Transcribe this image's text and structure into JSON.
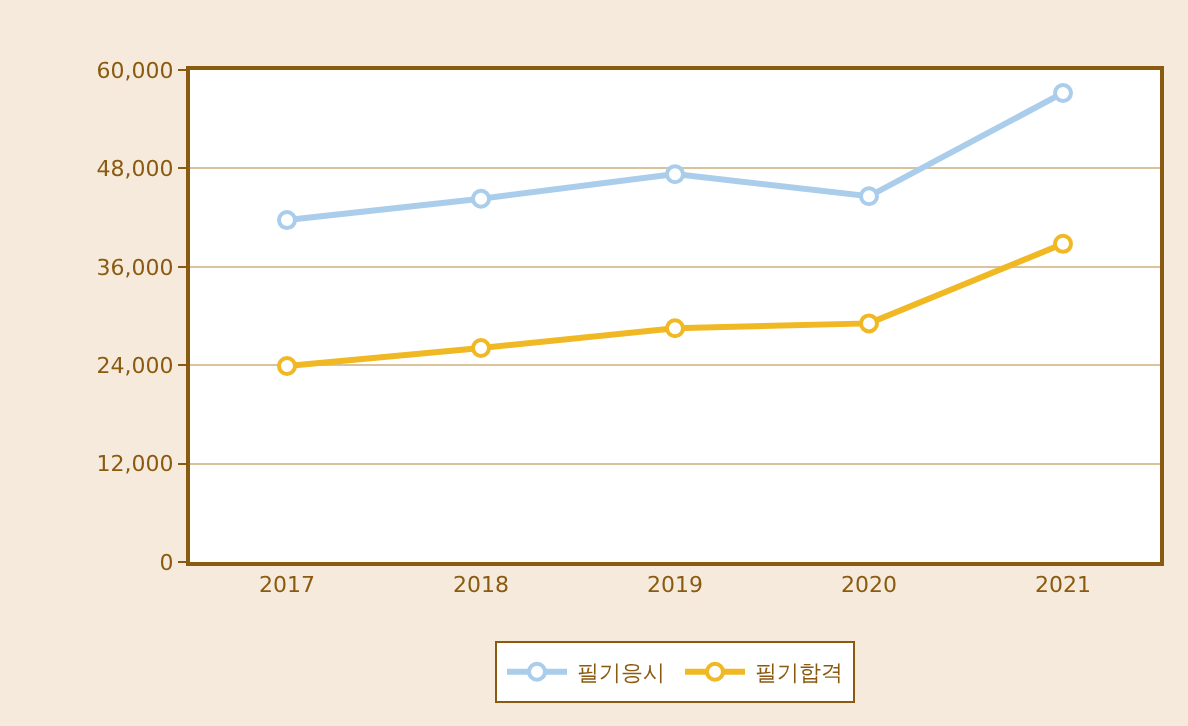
{
  "chart_data": {
    "type": "line",
    "categories": [
      "2017",
      "2018",
      "2019",
      "2020",
      "2021"
    ],
    "series": [
      {
        "name": "필기응시",
        "color": "#a9cdea",
        "values": [
          41700,
          44300,
          47300,
          44600,
          57200
        ]
      },
      {
        "name": "필기합격",
        "color": "#f0b823",
        "values": [
          23900,
          26100,
          28500,
          29100,
          38800
        ]
      }
    ],
    "ylim": [
      0,
      60000
    ],
    "yticks": [
      {
        "value": 0,
        "label": "0"
      },
      {
        "value": 12000,
        "label": "12,000"
      },
      {
        "value": 24000,
        "label": "24,000"
      },
      {
        "value": 36000,
        "label": "36,000"
      },
      {
        "value": 48000,
        "label": "48,000"
      },
      {
        "value": 60000,
        "label": "60,000"
      }
    ],
    "grid": "y",
    "legend": "bottom",
    "marker": "circle",
    "line_style": "solid"
  }
}
